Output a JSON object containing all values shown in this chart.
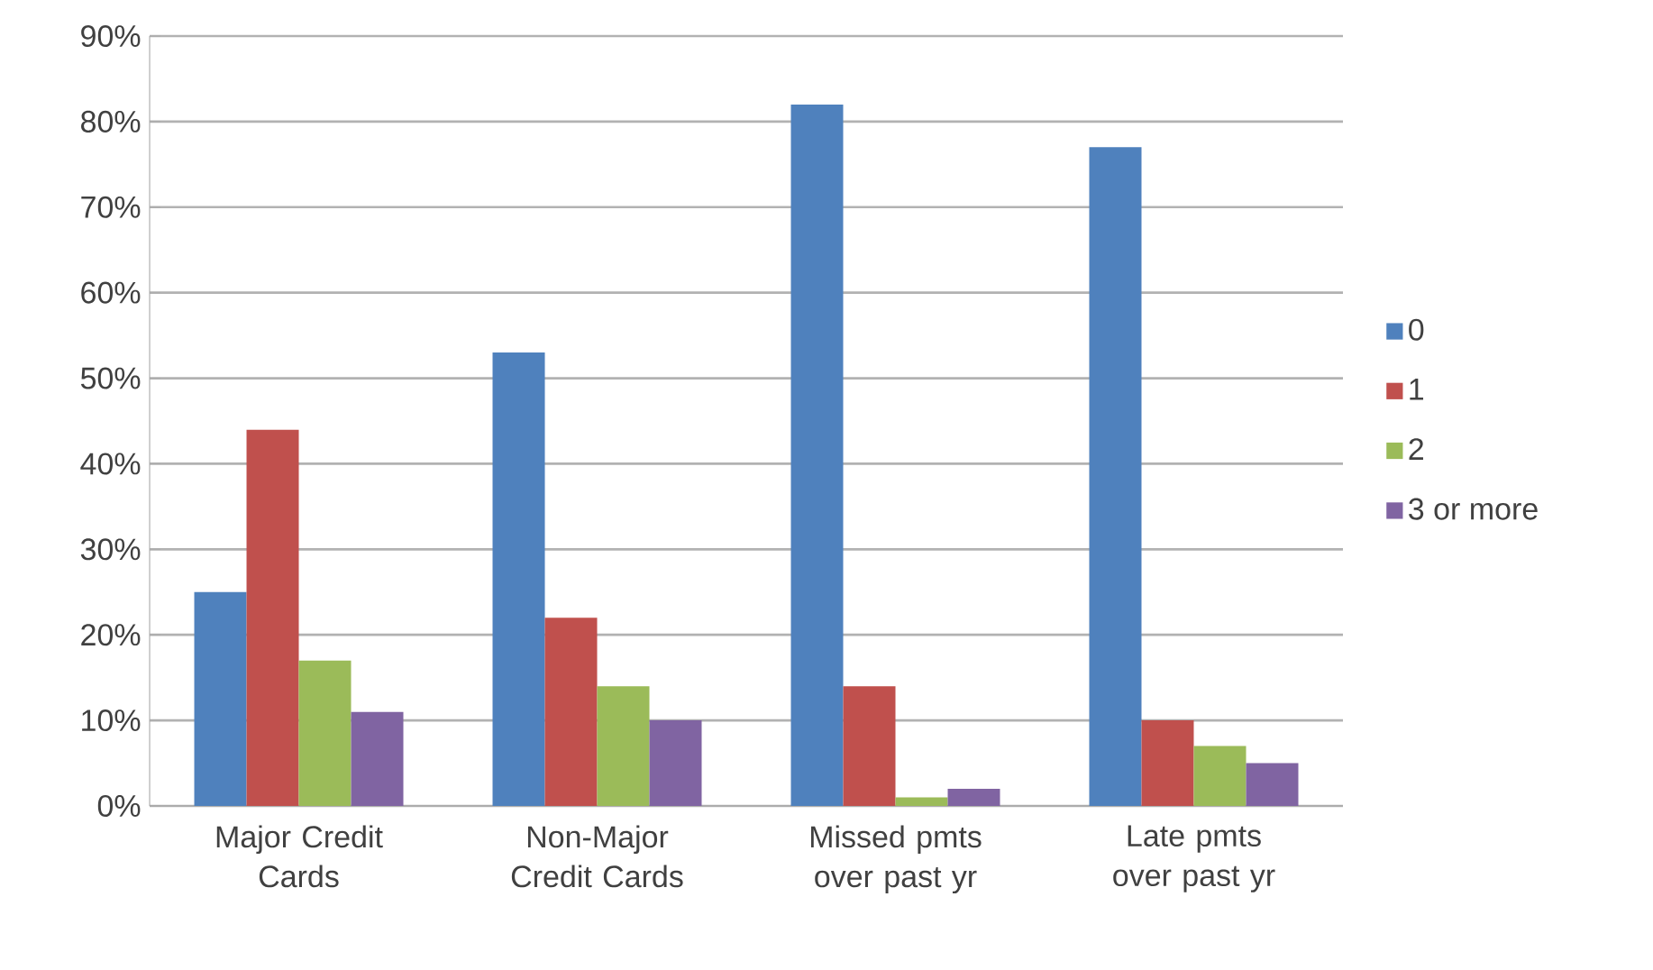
{
  "chart_data": {
    "type": "bar",
    "categories": [
      "Major Credit Cards",
      "Non-Major Credit Cards",
      "Missed pmts over past yr",
      "Late pmts over past yr"
    ],
    "series": [
      {
        "name": "0",
        "color": "#4f81bd",
        "values": [
          25,
          53,
          82,
          77
        ]
      },
      {
        "name": "1",
        "color": "#c0504d",
        "values": [
          44,
          22,
          14,
          10
        ]
      },
      {
        "name": "2",
        "color": "#9bbb59",
        "values": [
          17,
          14,
          1,
          7
        ]
      },
      {
        "name": "3 or more",
        "color": "#8064a2",
        "values": [
          11,
          10,
          2,
          5
        ]
      }
    ],
    "ylim": [
      0,
      90
    ],
    "yticks": [
      {
        "value": 0,
        "label": "0%"
      },
      {
        "value": 10,
        "label": "10%"
      },
      {
        "value": 20,
        "label": "20%"
      },
      {
        "value": 30,
        "label": "30%"
      },
      {
        "value": 40,
        "label": "40%"
      },
      {
        "value": 50,
        "label": "50%"
      },
      {
        "value": 60,
        "label": "60%"
      },
      {
        "value": 70,
        "label": "70%"
      },
      {
        "value": 80,
        "label": "80%"
      },
      {
        "value": 90,
        "label": "90%"
      }
    ],
    "grid": "y",
    "legend": "right"
  }
}
